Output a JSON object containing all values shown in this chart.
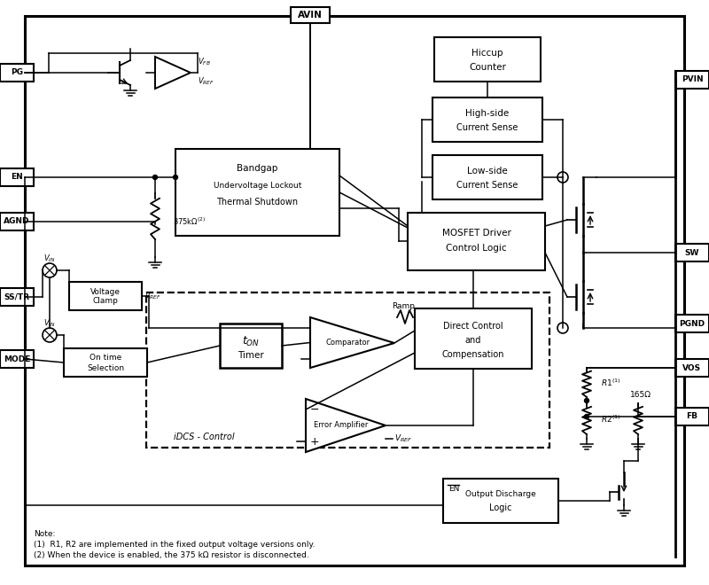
{
  "fig_width": 8.0,
  "fig_height": 6.6,
  "bg_color": "#ffffff",
  "notes": [
    "Note:",
    "(1)  R1, R2 are implemented in the fixed output voltage versions only.",
    "(2) When the device is enabled, the 375 kΩ resistor is disconnected."
  ]
}
